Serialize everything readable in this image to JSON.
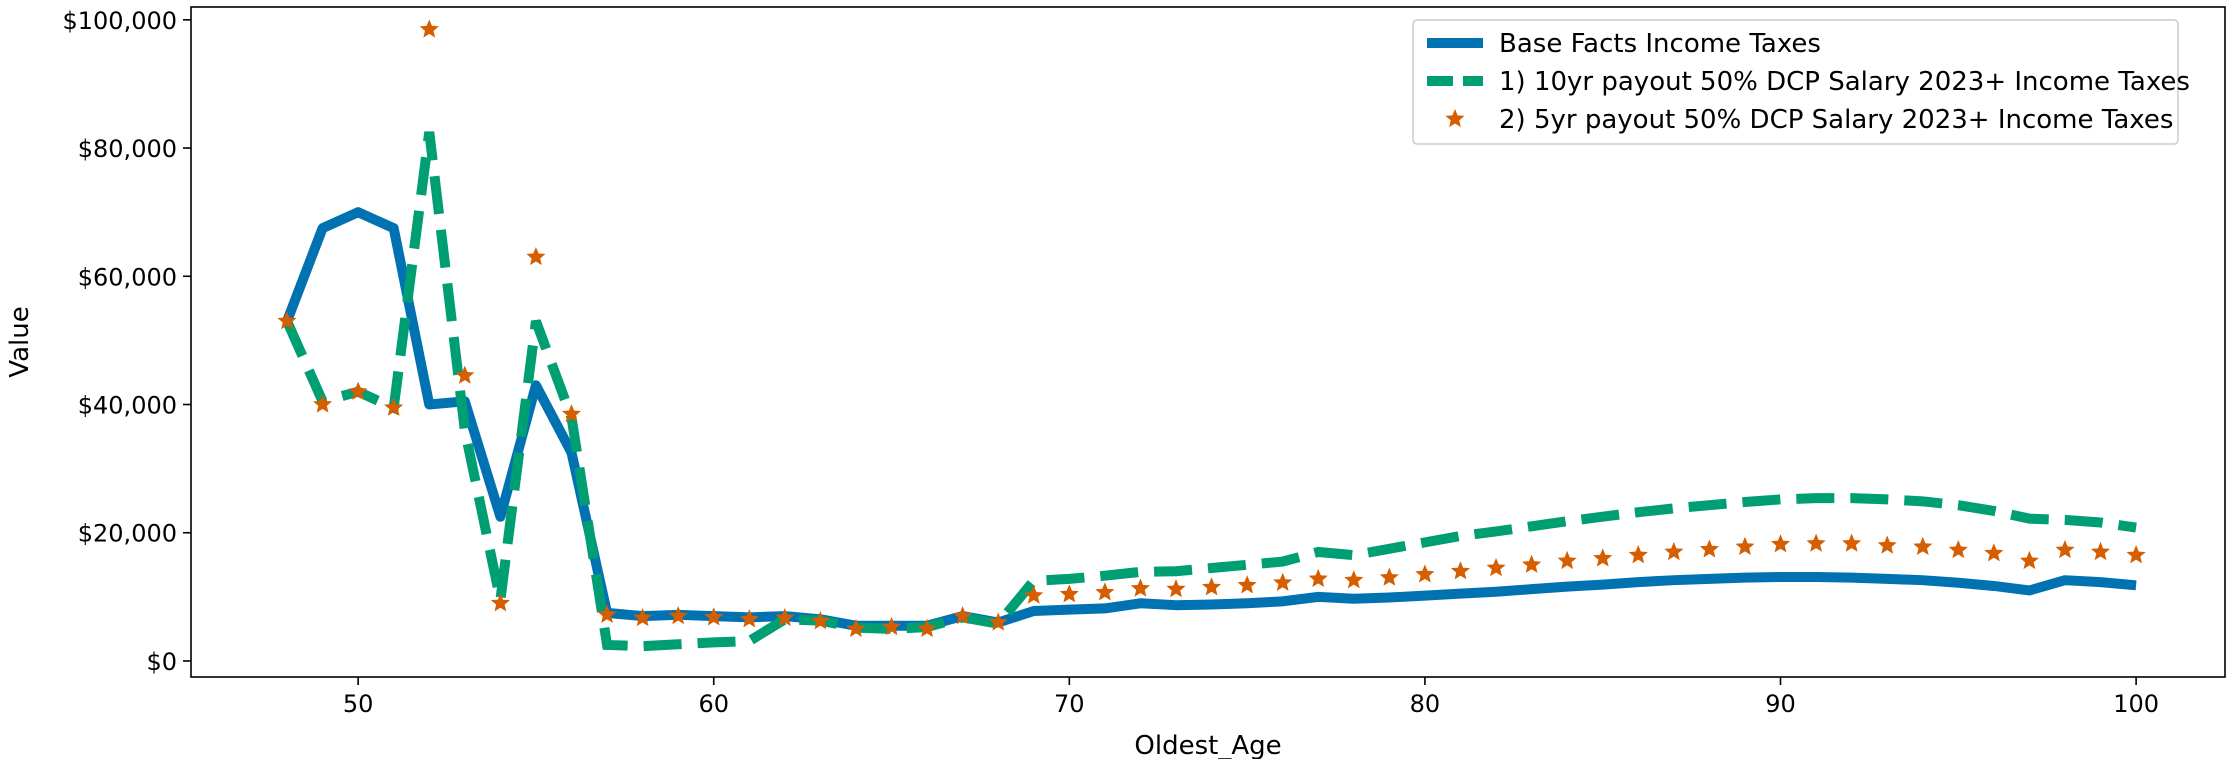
{
  "chart_data": {
    "type": "line",
    "xlabel": "Oldest_Age",
    "ylabel": "Value",
    "xlim": [
      45.3,
      102.5
    ],
    "ylim": [
      -2500,
      102000
    ],
    "x_ticks": [
      50,
      60,
      70,
      80,
      90,
      100
    ],
    "y_ticks": [
      0,
      20000,
      40000,
      60000,
      80000,
      100000
    ],
    "y_tick_labels": [
      "$0",
      "$20,000",
      "$40,000",
      "$60,000",
      "$80,000",
      "$100,000"
    ],
    "grid": false,
    "legend_position": "top-right",
    "x": [
      48,
      49,
      50,
      51,
      52,
      53,
      54,
      55,
      56,
      57,
      58,
      59,
      60,
      61,
      62,
      63,
      64,
      65,
      66,
      67,
      68,
      69,
      70,
      71,
      72,
      73,
      74,
      75,
      76,
      77,
      78,
      79,
      80,
      81,
      82,
      83,
      84,
      85,
      86,
      87,
      88,
      89,
      90,
      91,
      92,
      93,
      94,
      95,
      96,
      97,
      98,
      99,
      100
    ],
    "series": [
      {
        "name": "Base Facts Income Taxes",
        "color": "#0072b2",
        "style": "solid",
        "values": [
          53000,
          67500,
          70000,
          67500,
          40000,
          40500,
          22500,
          43000,
          32500,
          7500,
          7000,
          7200,
          7000,
          6800,
          7000,
          6500,
          5500,
          5500,
          5500,
          7000,
          6000,
          7800,
          8000,
          8200,
          9000,
          8700,
          8800,
          9000,
          9300,
          10000,
          9700,
          9900,
          10200,
          10500,
          10800,
          11200,
          11600,
          11900,
          12300,
          12600,
          12800,
          13000,
          13100,
          13100,
          13000,
          12800,
          12600,
          12200,
          11700,
          11000,
          12600,
          12300,
          11800
        ]
      },
      {
        "name": "1) 10yr payout 50% DCP Salary 2023+ Income Taxes",
        "color": "#009e73",
        "style": "dashed",
        "values": [
          53000,
          40500,
          42000,
          39500,
          82500,
          36000,
          9500,
          53000,
          38000,
          2500,
          2300,
          2600,
          2900,
          3100,
          6500,
          6300,
          5200,
          5000,
          5300,
          6800,
          5800,
          12500,
          12800,
          13300,
          13900,
          14000,
          14500,
          15000,
          15500,
          17000,
          16500,
          17500,
          18500,
          19500,
          20200,
          21000,
          21800,
          22500,
          23200,
          23800,
          24300,
          24800,
          25200,
          25400,
          25400,
          25200,
          24900,
          24300,
          23400,
          22200,
          22000,
          21600,
          20800
        ]
      },
      {
        "name": "2) 5yr payout 50% DCP Salary 2023+ Income Taxes",
        "color": "#d55e00",
        "style": "star",
        "values": [
          53000,
          40000,
          42000,
          39500,
          98500,
          44500,
          9000,
          63000,
          38500,
          7200,
          6700,
          7000,
          6800,
          6500,
          6700,
          6200,
          5000,
          5300,
          5000,
          7000,
          6000,
          10200,
          10400,
          10700,
          11300,
          11200,
          11500,
          11800,
          12200,
          12800,
          12600,
          13000,
          13500,
          14000,
          14500,
          15000,
          15600,
          16000,
          16500,
          17000,
          17400,
          17800,
          18200,
          18300,
          18300,
          18000,
          17800,
          17300,
          16800,
          15600,
          17300,
          17000,
          16500
        ]
      }
    ]
  }
}
